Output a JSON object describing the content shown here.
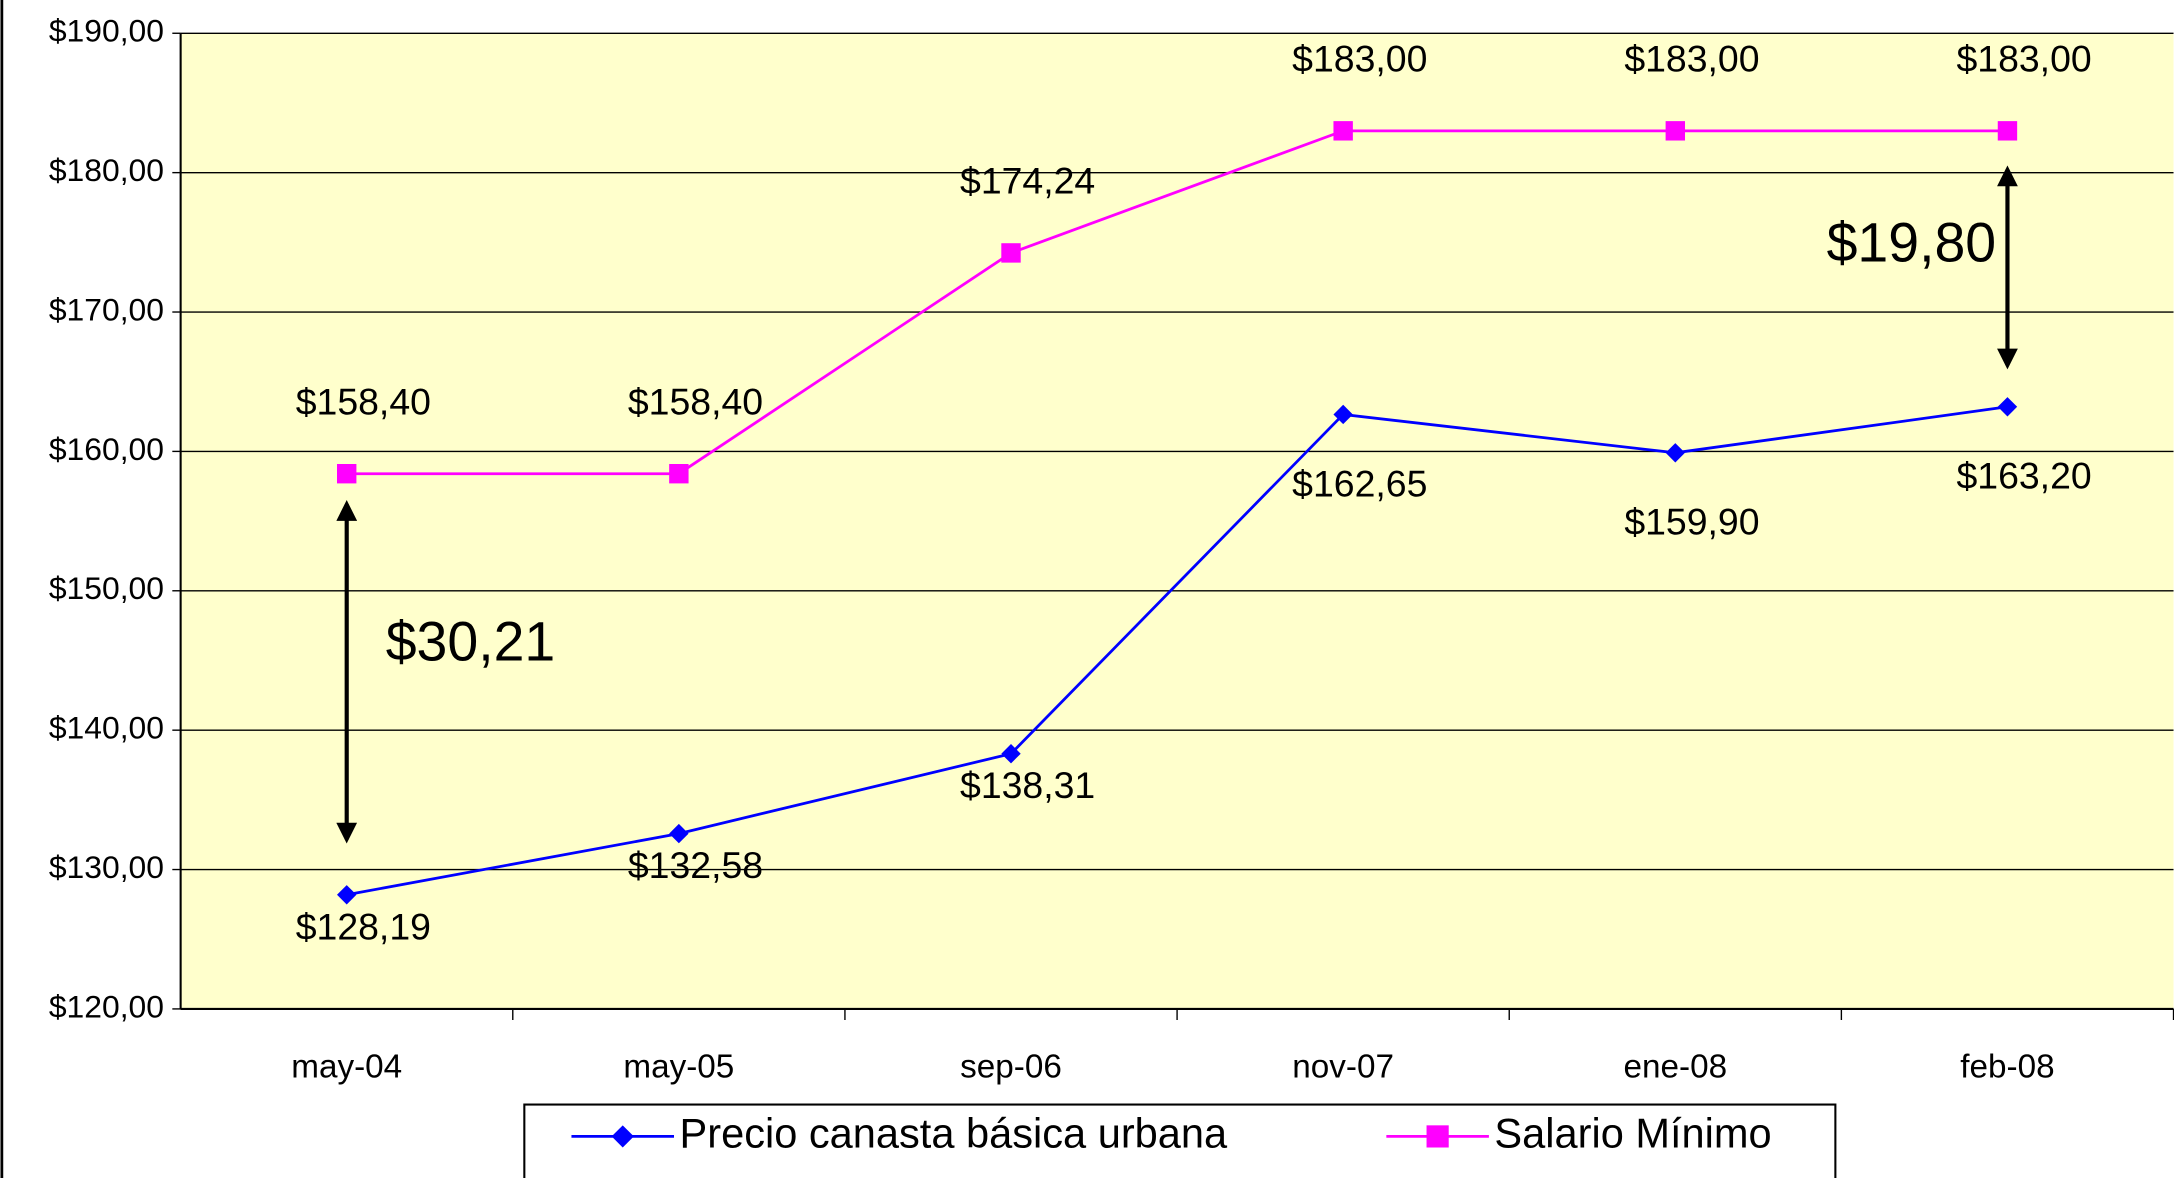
{
  "chart_data": {
    "type": "line",
    "categories": [
      "may-04",
      "may-05",
      "sep-06",
      "nov-07",
      "ene-08",
      "feb-08"
    ],
    "series": [
      {
        "name": "Precio canasta básica urbana",
        "color": "#0000ff",
        "values": [
          128.19,
          132.58,
          138.31,
          162.65,
          159.9,
          163.2
        ],
        "value_labels": [
          "$128,19",
          "$132,58",
          "$138,31",
          "$162,65",
          "$159,90",
          "$163,20"
        ]
      },
      {
        "name": "Salario Mínimo",
        "color": "#ff00ff",
        "values": [
          158.4,
          158.4,
          174.24,
          183,
          183,
          183
        ],
        "value_labels": [
          "$158,40",
          "$158,40",
          "$174,24",
          "$183,00",
          "$183,00",
          "$183,00"
        ]
      }
    ],
    "ylim": [
      120,
      190
    ],
    "yticks": [
      {
        "value": 120,
        "label": "$120,00"
      },
      {
        "value": 130,
        "label": "$130,00"
      },
      {
        "value": 140,
        "label": "$140,00"
      },
      {
        "value": 150,
        "label": "$150,00"
      },
      {
        "value": 160,
        "label": "$160,00"
      },
      {
        "value": 170,
        "label": "$170,00"
      },
      {
        "value": 180,
        "label": "$180,00"
      },
      {
        "value": 190,
        "label": "$190,00"
      }
    ],
    "grid": true,
    "legend": "bottom",
    "annotations": [
      "$30,21",
      "$19,80"
    ]
  }
}
